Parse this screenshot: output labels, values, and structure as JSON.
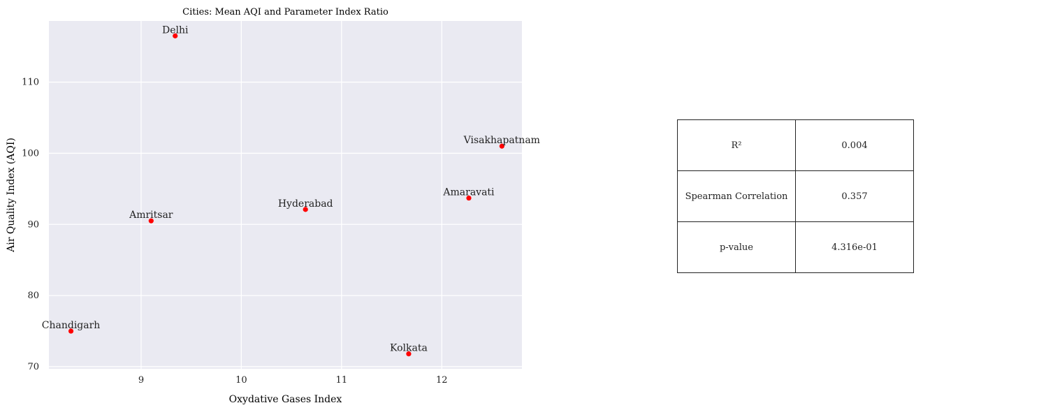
{
  "chart_data": {
    "type": "scatter",
    "title": "Cities: Mean AQI and Parameter Index Ratio",
    "xlabel": "Oxydative Gases Index",
    "ylabel": "Air Quality Index (AQI)",
    "xlim": [
      8.08,
      12.8
    ],
    "ylim": [
      69.7,
      118.6
    ],
    "xticks": [
      9,
      10,
      11,
      12
    ],
    "yticks": [
      70,
      80,
      90,
      100,
      110
    ],
    "grid": true,
    "point_color": "#ff0000",
    "background_color": "#eaeaf2",
    "points": [
      {
        "label": "Delhi",
        "x": 9.34,
        "y": 116.5
      },
      {
        "label": "Visakhapatnam",
        "x": 12.6,
        "y": 101.0
      },
      {
        "label": "Amaravati",
        "x": 12.27,
        "y": 93.7
      },
      {
        "label": "Hyderabad",
        "x": 10.64,
        "y": 92.1
      },
      {
        "label": "Amritsar",
        "x": 9.1,
        "y": 90.5
      },
      {
        "label": "Chandigarh",
        "x": 8.3,
        "y": 75.0
      },
      {
        "label": "Kolkata",
        "x": 11.67,
        "y": 71.8
      }
    ]
  },
  "stats_table": {
    "rows": [
      {
        "name": "R²",
        "value": "0.004"
      },
      {
        "name": "Spearman Correlation",
        "value": "0.357"
      },
      {
        "name": "p-value",
        "value": "4.316e-01"
      }
    ]
  }
}
